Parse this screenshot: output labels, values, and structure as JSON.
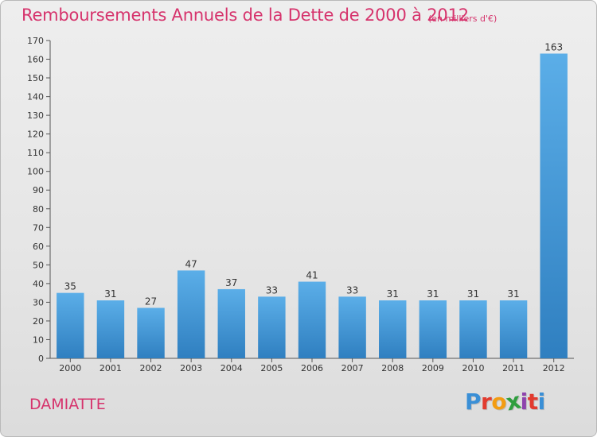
{
  "chart_data": {
    "type": "bar",
    "title": "Remboursements Annuels de la Dette de 2000 à 2012",
    "subtitle": "(en milliers d'€)",
    "categories": [
      "2000",
      "2001",
      "2002",
      "2003",
      "2004",
      "2005",
      "2006",
      "2007",
      "2008",
      "2009",
      "2010",
      "2011",
      "2012"
    ],
    "values": [
      35,
      31,
      27,
      47,
      37,
      33,
      41,
      33,
      31,
      31,
      31,
      31,
      163
    ],
    "ylim": [
      0,
      170
    ],
    "yticks": [
      0,
      10,
      20,
      30,
      40,
      50,
      60,
      70,
      80,
      90,
      100,
      110,
      120,
      130,
      140,
      150,
      160,
      170
    ],
    "grid": false,
    "bar_color_top": "#5baee8",
    "bar_color_bottom": "#2f7fc0"
  },
  "footer": {
    "commune": "DAMIATTE",
    "logo_letters": [
      {
        "ch": "P",
        "color": "#3a8fd6"
      },
      {
        "ch": "r",
        "color": "#e23b2f"
      },
      {
        "ch": "o",
        "color": "#f39c12"
      },
      {
        "ch": "x",
        "color": "#2e9e3e"
      },
      {
        "ch": "i",
        "color": "#8e44ad"
      },
      {
        "ch": "t",
        "color": "#e23b2f"
      },
      {
        "ch": "i",
        "color": "#3a8fd6"
      }
    ]
  }
}
